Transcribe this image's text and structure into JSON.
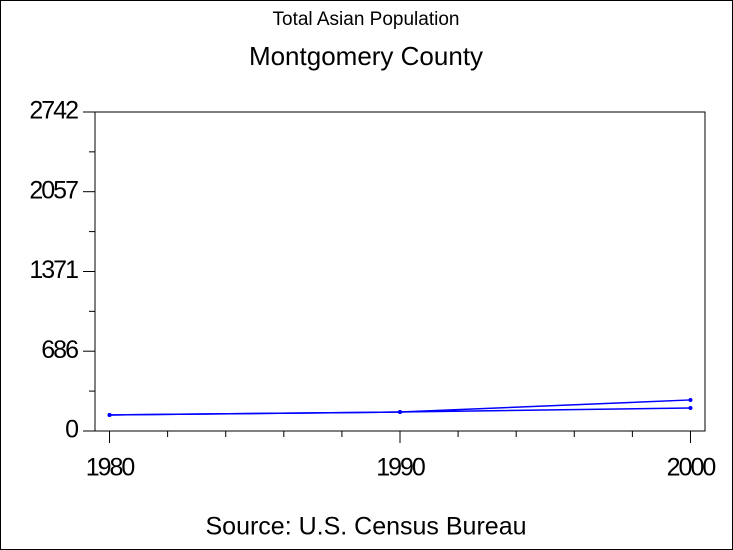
{
  "chart_data": {
    "type": "line",
    "title": "Total Asian Population",
    "subtitle": "Montgomery County",
    "footnote": "Source: U.S. Census Bureau",
    "x": [
      1980,
      1990,
      2000
    ],
    "series": [
      {
        "color": "#0000ff",
        "values": [
          138,
          163,
          267
        ]
      },
      {
        "color": "#0000ff",
        "values": [
          138,
          163,
          198
        ]
      }
    ],
    "xlim": [
      1979.5,
      2000.5
    ],
    "xticks": [
      1980,
      1990,
      2000
    ],
    "ylim": [
      0,
      2742
    ],
    "yticks": [
      0,
      686,
      1371,
      2057,
      2742
    ]
  }
}
